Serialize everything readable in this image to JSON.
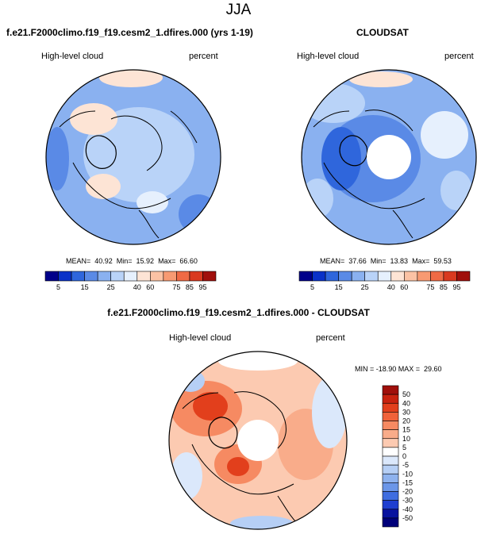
{
  "page_title": "JJA",
  "panels": [
    {
      "title": "f.e21.F2000climo.f19_f19.cesm2_1.dfires.000 (yrs 1-19)",
      "variable": "High-level cloud",
      "units": "percent",
      "stats": "MEAN=  40.92  Min=  15.92  Max=  66.60"
    },
    {
      "title": "CLOUDSAT",
      "variable": "High-level cloud",
      "units": "percent",
      "stats": "MEAN=  37.66  Min=  13.83  Max=  59.53"
    },
    {
      "title": "f.e21.F2000climo.f19_f19.cesm2_1.dfires.000 - CLOUDSAT",
      "variable": "High-level cloud",
      "units": "percent",
      "stats": "MIN = -18.90 MAX =  29.60"
    }
  ],
  "chart_data": [
    {
      "type": "heatmap",
      "title": "f.e21.F2000climo.f19_f19.cesm2_1.dfires.000 (yrs 1-19)",
      "projection": "north polar stereographic",
      "variable": "High-level cloud",
      "units": "percent",
      "mean": 40.92,
      "min": 15.92,
      "max": 66.6,
      "colorbar_levels": [
        5,
        15,
        25,
        40,
        60,
        75,
        85,
        95
      ],
      "colorbar_labels": [
        "5",
        "15",
        "25",
        "40",
        "60",
        "75",
        "85",
        "95"
      ],
      "colorbar_colors": [
        "#00008a",
        "#0a32c8",
        "#2f66dc",
        "#5a8ae6",
        "#8ab1f0",
        "#b9d3f8",
        "#e6f0fd",
        "#fde4d5",
        "#fbc2a4",
        "#f79a72",
        "#ef6a45",
        "#d9391f",
        "#a00f0b"
      ]
    },
    {
      "type": "heatmap",
      "title": "CLOUDSAT",
      "projection": "north polar stereographic",
      "variable": "High-level cloud",
      "units": "percent",
      "mean": 37.66,
      "min": 13.83,
      "max": 59.53,
      "colorbar_levels": [
        5,
        15,
        25,
        40,
        60,
        75,
        85,
        95
      ],
      "colorbar_labels": [
        "5",
        "15",
        "25",
        "40",
        "60",
        "75",
        "85",
        "95"
      ],
      "colorbar_colors": [
        "#00008a",
        "#0a32c8",
        "#2f66dc",
        "#5a8ae6",
        "#8ab1f0",
        "#b9d3f8",
        "#e6f0fd",
        "#fde4d5",
        "#fbc2a4",
        "#f79a72",
        "#ef6a45",
        "#d9391f",
        "#a00f0b"
      ]
    },
    {
      "type": "heatmap",
      "title": "f.e21.F2000climo.f19_f19.cesm2_1.dfires.000 - CLOUDSAT",
      "projection": "north polar stereographic",
      "variable": "High-level cloud",
      "units": "percent",
      "min": -18.9,
      "max": 29.6,
      "colorbar_levels": [
        50,
        40,
        30,
        20,
        15,
        10,
        5,
        0,
        -5,
        -10,
        -15,
        -20,
        -30,
        -40,
        -50
      ],
      "colorbar_labels": [
        "50",
        "40",
        "30",
        "20",
        "15",
        "10",
        "5",
        "0",
        "-5",
        "-10",
        "-15",
        "-20",
        "-30",
        "-40",
        "-50"
      ],
      "colorbar_colors": [
        "#a00f0b",
        "#c8220f",
        "#e23f1c",
        "#f0623a",
        "#f68a62",
        "#f9ac8a",
        "#fccab1",
        "#ffffff",
        "#dbe8fb",
        "#b6cff5",
        "#8eb2ee",
        "#6b96e8",
        "#3f6de0",
        "#1e3ed0",
        "#08129f",
        "#00007a"
      ]
    }
  ]
}
